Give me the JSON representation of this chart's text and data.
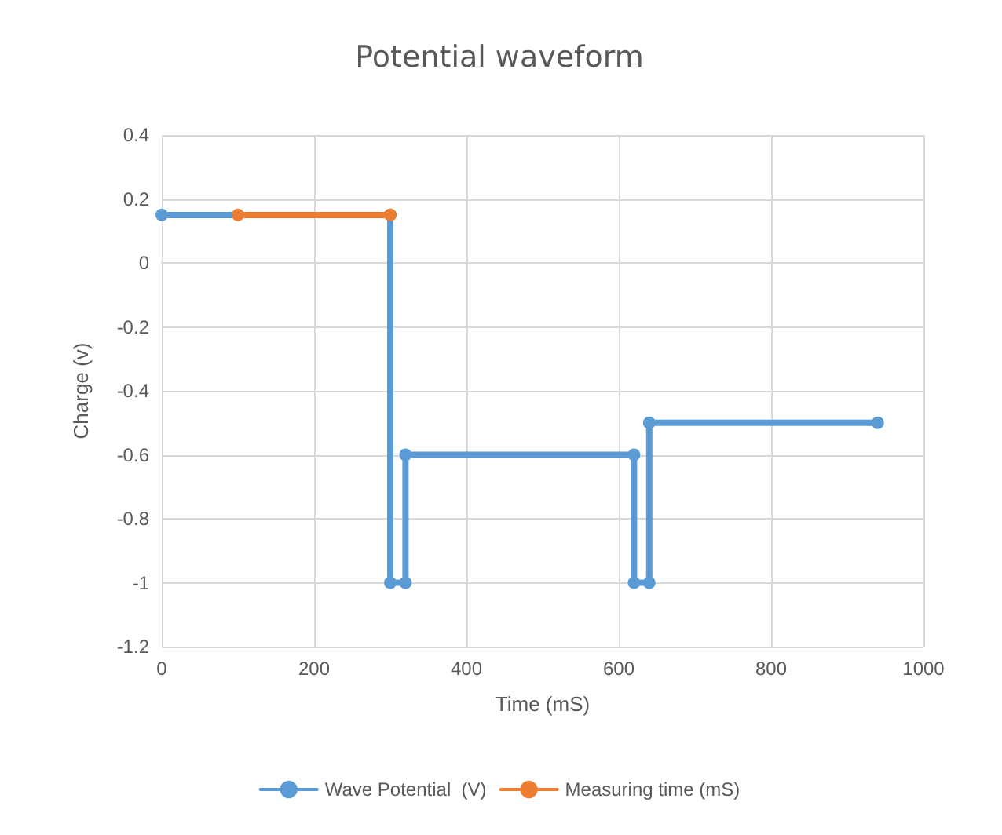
{
  "chart_data": {
    "type": "line",
    "title": "Potential waveform",
    "xlabel": "Time (mS)",
    "ylabel": "Charge (v)",
    "xlim": [
      0,
      1000
    ],
    "xticks": [
      0,
      200,
      400,
      600,
      800,
      1000
    ],
    "ylim": [
      -1.2,
      0.4
    ],
    "yticks": [
      -1.2,
      -1,
      -0.8,
      -0.6,
      -0.4,
      -0.2,
      0,
      0.2,
      0.4
    ],
    "grid": true,
    "legend": "bottom",
    "marker": "circle",
    "line_style": "solid",
    "series": [
      {
        "name": "Wave Potential  (V)",
        "color": "#5b9bd5",
        "x": [
          0,
          300,
          300,
          320,
          320,
          620,
          620,
          640,
          640,
          940
        ],
        "values": [
          0.15,
          0.15,
          -1,
          -1,
          -0.6,
          -0.6,
          -1,
          -1,
          -0.5,
          -0.5
        ]
      },
      {
        "name": "Measuring time (mS)",
        "color": "#ed7d31",
        "x": [
          100,
          300
        ],
        "values": [
          0.15,
          0.15
        ]
      }
    ]
  }
}
